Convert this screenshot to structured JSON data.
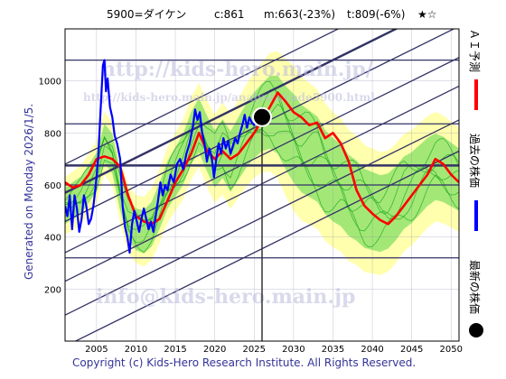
{
  "header": {
    "code_name": "5900=ダイケン",
    "current": "c:861",
    "max_change": "m:663(-23%)",
    "target": "t:809(-6%)",
    "stars": "★☆"
  },
  "side_label": "Generated on Monday 2026/1/5.",
  "copyright": "Copyright (c) Kids-Hero Research Institute. All Rights Reserved.",
  "watermarks": {
    "url": "http://kids-hero.main.jp/",
    "url_small": "http://kids-hero.main.jp/analysis/code5900.html",
    "email": "info@kids-hero.main.jp"
  },
  "legend": [
    {
      "label": "ＡＩ予測",
      "color": "#ff0000",
      "marker": "line"
    },
    {
      "label": "過去の株価",
      "color": "#0000ff",
      "marker": "line"
    },
    {
      "label": "最新の株価",
      "color": "#000000",
      "marker": "dot"
    }
  ],
  "colors": {
    "ai_prediction": "#ff0000",
    "past_price": "#0000ff",
    "green_band": "#33cc33",
    "yellow_band": "#ffff99",
    "trend_lines": "#333366",
    "grid": "#8888aa",
    "plot_border": "#000000"
  },
  "chart_data": {
    "type": "line",
    "title": "",
    "xlabel": "",
    "ylabel": "",
    "xlim": [
      2001,
      2051
    ],
    "ylim": [
      0,
      1200
    ],
    "x_ticks": [
      2005,
      2010,
      2015,
      2020,
      2025,
      2030,
      2035,
      2040,
      2045,
      2050
    ],
    "y_ticks": [
      200,
      400,
      600,
      800,
      1000
    ],
    "grid": true,
    "latest": {
      "x": 2026.0,
      "y": 861
    },
    "current_year_marker": 2026.0,
    "horizontal_levels": [
      1080,
      835,
      675,
      600,
      320
    ],
    "trend_lines": [
      {
        "x1": 2001,
        "y1": 230,
        "x2": 2051,
        "y2": 980
      },
      {
        "x1": 2001,
        "y1": 340,
        "x2": 2051,
        "y2": 1090
      },
      {
        "x1": 2001,
        "y1": 460,
        "x2": 2051,
        "y2": 1210
      },
      {
        "x1": 2001,
        "y1": 570,
        "x2": 2051,
        "y2": 1320
      },
      {
        "x1": 2001,
        "y1": 680,
        "x2": 2051,
        "y2": 1430
      },
      {
        "x1": 2001,
        "y1": -20,
        "x2": 2051,
        "y2": 730
      },
      {
        "x1": 2001,
        "y1": 100,
        "x2": 2051,
        "y2": 850
      }
    ],
    "band_center": [
      [
        2001,
        520
      ],
      [
        2003,
        560
      ],
      [
        2005,
        650
      ],
      [
        2006,
        760
      ],
      [
        2007,
        720
      ],
      [
        2008,
        580
      ],
      [
        2009,
        470
      ],
      [
        2010,
        430
      ],
      [
        2011,
        420
      ],
      [
        2012,
        450
      ],
      [
        2013,
        520
      ],
      [
        2014,
        600
      ],
      [
        2015,
        650
      ],
      [
        2016,
        700
      ],
      [
        2017,
        780
      ],
      [
        2018,
        830
      ],
      [
        2019,
        760
      ],
      [
        2020,
        700
      ],
      [
        2021,
        740
      ],
      [
        2022,
        690
      ],
      [
        2023,
        740
      ],
      [
        2024,
        790
      ],
      [
        2025,
        830
      ],
      [
        2026,
        860
      ],
      [
        2027,
        880
      ],
      [
        2028,
        870
      ],
      [
        2029,
        820
      ],
      [
        2030,
        780
      ],
      [
        2031,
        740
      ],
      [
        2032,
        720
      ],
      [
        2033,
        700
      ],
      [
        2034,
        650
      ],
      [
        2035,
        620
      ],
      [
        2036,
        600
      ],
      [
        2037,
        560
      ],
      [
        2038,
        540
      ],
      [
        2039,
        510
      ],
      [
        2040,
        500
      ],
      [
        2041,
        490
      ],
      [
        2042,
        500
      ],
      [
        2043,
        530
      ],
      [
        2044,
        570
      ],
      [
        2045,
        590
      ],
      [
        2046,
        620
      ],
      [
        2047,
        650
      ],
      [
        2048,
        670
      ],
      [
        2049,
        660
      ],
      [
        2050,
        640
      ],
      [
        2051,
        620
      ]
    ],
    "band_half_width_green": [
      [
        2001,
        70
      ],
      [
        2010,
        80
      ],
      [
        2020,
        110
      ],
      [
        2026,
        130
      ],
      [
        2030,
        170
      ],
      [
        2040,
        150
      ],
      [
        2051,
        120
      ]
    ],
    "band_half_width_yellow": [
      [
        2001,
        110
      ],
      [
        2010,
        130
      ],
      [
        2020,
        170
      ],
      [
        2026,
        210
      ],
      [
        2030,
        280
      ],
      [
        2040,
        240
      ],
      [
        2051,
        200
      ]
    ],
    "series": [
      {
        "name": "AI予測",
        "color": "#ff0000",
        "points": [
          [
            2001,
            610
          ],
          [
            2002,
            590
          ],
          [
            2003,
            600
          ],
          [
            2004,
            640
          ],
          [
            2005,
            700
          ],
          [
            2006,
            710
          ],
          [
            2007,
            700
          ],
          [
            2008,
            670
          ],
          [
            2009,
            560
          ],
          [
            2010,
            480
          ],
          [
            2011,
            460
          ],
          [
            2012,
            450
          ],
          [
            2013,
            470
          ],
          [
            2014,
            540
          ],
          [
            2015,
            610
          ],
          [
            2016,
            660
          ],
          [
            2017,
            720
          ],
          [
            2018,
            800
          ],
          [
            2019,
            730
          ],
          [
            2020,
            700
          ],
          [
            2021,
            730
          ],
          [
            2022,
            700
          ],
          [
            2023,
            720
          ],
          [
            2024,
            760
          ],
          [
            2025,
            800
          ],
          [
            2026,
            850
          ],
          [
            2027,
            900
          ],
          [
            2028,
            955
          ],
          [
            2029,
            920
          ],
          [
            2030,
            880
          ],
          [
            2031,
            860
          ],
          [
            2032,
            830
          ],
          [
            2033,
            840
          ],
          [
            2034,
            780
          ],
          [
            2035,
            800
          ],
          [
            2036,
            760
          ],
          [
            2037,
            690
          ],
          [
            2038,
            580
          ],
          [
            2039,
            520
          ],
          [
            2040,
            490
          ],
          [
            2041,
            465
          ],
          [
            2042,
            450
          ],
          [
            2043,
            480
          ],
          [
            2044,
            520
          ],
          [
            2045,
            560
          ],
          [
            2046,
            600
          ],
          [
            2047,
            640
          ],
          [
            2048,
            700
          ],
          [
            2049,
            680
          ],
          [
            2050,
            640
          ],
          [
            2051,
            610
          ]
        ]
      },
      {
        "name": "過去の株価",
        "color": "#0000ff",
        "points": [
          [
            2001.0,
            520
          ],
          [
            2001.3,
            480
          ],
          [
            2001.6,
            560
          ],
          [
            2001.9,
            430
          ],
          [
            2002.2,
            560
          ],
          [
            2002.5,
            510
          ],
          [
            2002.8,
            420
          ],
          [
            2003.1,
            470
          ],
          [
            2003.4,
            560
          ],
          [
            2003.7,
            520
          ],
          [
            2004.0,
            450
          ],
          [
            2004.3,
            470
          ],
          [
            2004.6,
            520
          ],
          [
            2004.9,
            600
          ],
          [
            2005.2,
            700
          ],
          [
            2005.5,
            880
          ],
          [
            2005.8,
            1060
          ],
          [
            2006.0,
            1080
          ],
          [
            2006.2,
            960
          ],
          [
            2006.4,
            1010
          ],
          [
            2006.7,
            900
          ],
          [
            2007.0,
            860
          ],
          [
            2007.3,
            790
          ],
          [
            2007.6,
            760
          ],
          [
            2008.0,
            700
          ],
          [
            2008.3,
            520
          ],
          [
            2008.6,
            440
          ],
          [
            2008.9,
            400
          ],
          [
            2009.2,
            340
          ],
          [
            2009.5,
            450
          ],
          [
            2009.8,
            500
          ],
          [
            2010.1,
            460
          ],
          [
            2010.4,
            420
          ],
          [
            2010.7,
            470
          ],
          [
            2011.0,
            510
          ],
          [
            2011.3,
            470
          ],
          [
            2011.6,
            430
          ],
          [
            2011.9,
            460
          ],
          [
            2012.2,
            420
          ],
          [
            2012.5,
            480
          ],
          [
            2012.8,
            540
          ],
          [
            2013.1,
            610
          ],
          [
            2013.4,
            560
          ],
          [
            2013.7,
            600
          ],
          [
            2014.0,
            580
          ],
          [
            2014.4,
            640
          ],
          [
            2014.8,
            610
          ],
          [
            2015.2,
            680
          ],
          [
            2015.6,
            700
          ],
          [
            2016.0,
            660
          ],
          [
            2016.4,
            720
          ],
          [
            2016.8,
            760
          ],
          [
            2017.2,
            820
          ],
          [
            2017.5,
            890
          ],
          [
            2017.8,
            850
          ],
          [
            2018.1,
            880
          ],
          [
            2018.4,
            800
          ],
          [
            2018.7,
            760
          ],
          [
            2019.0,
            690
          ],
          [
            2019.3,
            740
          ],
          [
            2019.6,
            710
          ],
          [
            2019.9,
            630
          ],
          [
            2020.2,
            700
          ],
          [
            2020.5,
            760
          ],
          [
            2020.8,
            720
          ],
          [
            2021.1,
            780
          ],
          [
            2021.4,
            740
          ],
          [
            2021.7,
            770
          ],
          [
            2022.0,
            720
          ],
          [
            2022.3,
            750
          ],
          [
            2022.6,
            780
          ],
          [
            2022.9,
            760
          ],
          [
            2023.2,
            800
          ],
          [
            2023.5,
            830
          ],
          [
            2023.8,
            870
          ],
          [
            2024.1,
            820
          ],
          [
            2024.4,
            860
          ],
          [
            2024.7,
            840
          ],
          [
            2025.0,
            830
          ],
          [
            2025.3,
            870
          ],
          [
            2025.6,
            850
          ],
          [
            2025.9,
            861
          ]
        ]
      }
    ]
  }
}
